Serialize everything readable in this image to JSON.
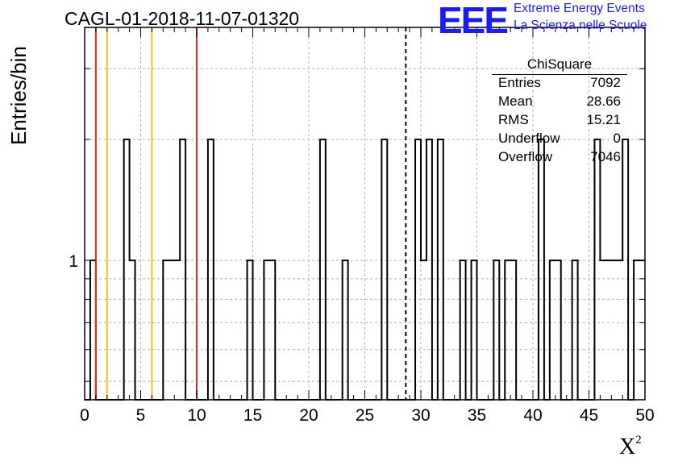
{
  "title": "CAGL-01-2018-11-07-01320",
  "logo": {
    "mark": "EEE",
    "line1": "Extreme Energy Events",
    "line2": "La Scienza nelle Scuole",
    "color": "#1a1aff"
  },
  "stats": {
    "name": "ChiSquare",
    "rows": [
      {
        "key": "Entries",
        "value": "7092"
      },
      {
        "key": "Mean",
        "value": "28.66"
      },
      {
        "key": "RMS",
        "value": "15.21"
      },
      {
        "key": "Underflow",
        "value": "0"
      },
      {
        "key": "Overflow",
        "value": "7046"
      }
    ]
  },
  "chart_data": {
    "type": "histogram",
    "title": "CAGL-01-2018-11-07-01320",
    "xlabel": "X²",
    "ylabel": "Entries/bin",
    "xlim": [
      0,
      50
    ],
    "ylog": true,
    "ylim": [
      0.45,
      3.8
    ],
    "xticks": [
      "0",
      "5",
      "10",
      "15",
      "20",
      "25",
      "30",
      "35",
      "40",
      "45",
      "50"
    ],
    "yticks": [
      "1"
    ],
    "grid": true,
    "bin_width": 0.5,
    "bins": [
      {
        "x": 0.5,
        "y": 1
      },
      {
        "x": 3.5,
        "y": 2
      },
      {
        "x": 4.0,
        "y": 1
      },
      {
        "x": 7.0,
        "y": 1
      },
      {
        "x": 7.5,
        "y": 1
      },
      {
        "x": 8.0,
        "y": 1
      },
      {
        "x": 8.5,
        "y": 2
      },
      {
        "x": 11.0,
        "y": 2
      },
      {
        "x": 14.5,
        "y": 1
      },
      {
        "x": 16.0,
        "y": 1
      },
      {
        "x": 16.5,
        "y": 1
      },
      {
        "x": 21.0,
        "y": 2
      },
      {
        "x": 23.0,
        "y": 1
      },
      {
        "x": 26.5,
        "y": 2
      },
      {
        "x": 29.5,
        "y": 2
      },
      {
        "x": 30.0,
        "y": 1
      },
      {
        "x": 30.5,
        "y": 2
      },
      {
        "x": 31.5,
        "y": 2
      },
      {
        "x": 33.5,
        "y": 1
      },
      {
        "x": 34.5,
        "y": 1
      },
      {
        "x": 36.5,
        "y": 1
      },
      {
        "x": 37.5,
        "y": 1
      },
      {
        "x": 38.0,
        "y": 1
      },
      {
        "x": 40.5,
        "y": 2
      },
      {
        "x": 41.5,
        "y": 1
      },
      {
        "x": 42.0,
        "y": 1
      },
      {
        "x": 43.5,
        "y": 1
      },
      {
        "x": 45.5,
        "y": 2
      },
      {
        "x": 46.0,
        "y": 1
      },
      {
        "x": 46.5,
        "y": 1
      },
      {
        "x": 47.0,
        "y": 1
      },
      {
        "x": 47.5,
        "y": 1
      },
      {
        "x": 48.0,
        "y": 2
      },
      {
        "x": 49.0,
        "y": 1
      },
      {
        "x": 49.5,
        "y": 1
      }
    ],
    "markers": [
      {
        "x": 1,
        "color": "#e8262b",
        "style": "solid"
      },
      {
        "x": 2,
        "color": "#f2c21b",
        "style": "solid"
      },
      {
        "x": 6,
        "color": "#f2c21b",
        "style": "solid"
      },
      {
        "x": 10,
        "color": "#e8262b",
        "style": "solid"
      },
      {
        "x": 28.66,
        "color": "#000000",
        "style": "dashed"
      }
    ]
  }
}
